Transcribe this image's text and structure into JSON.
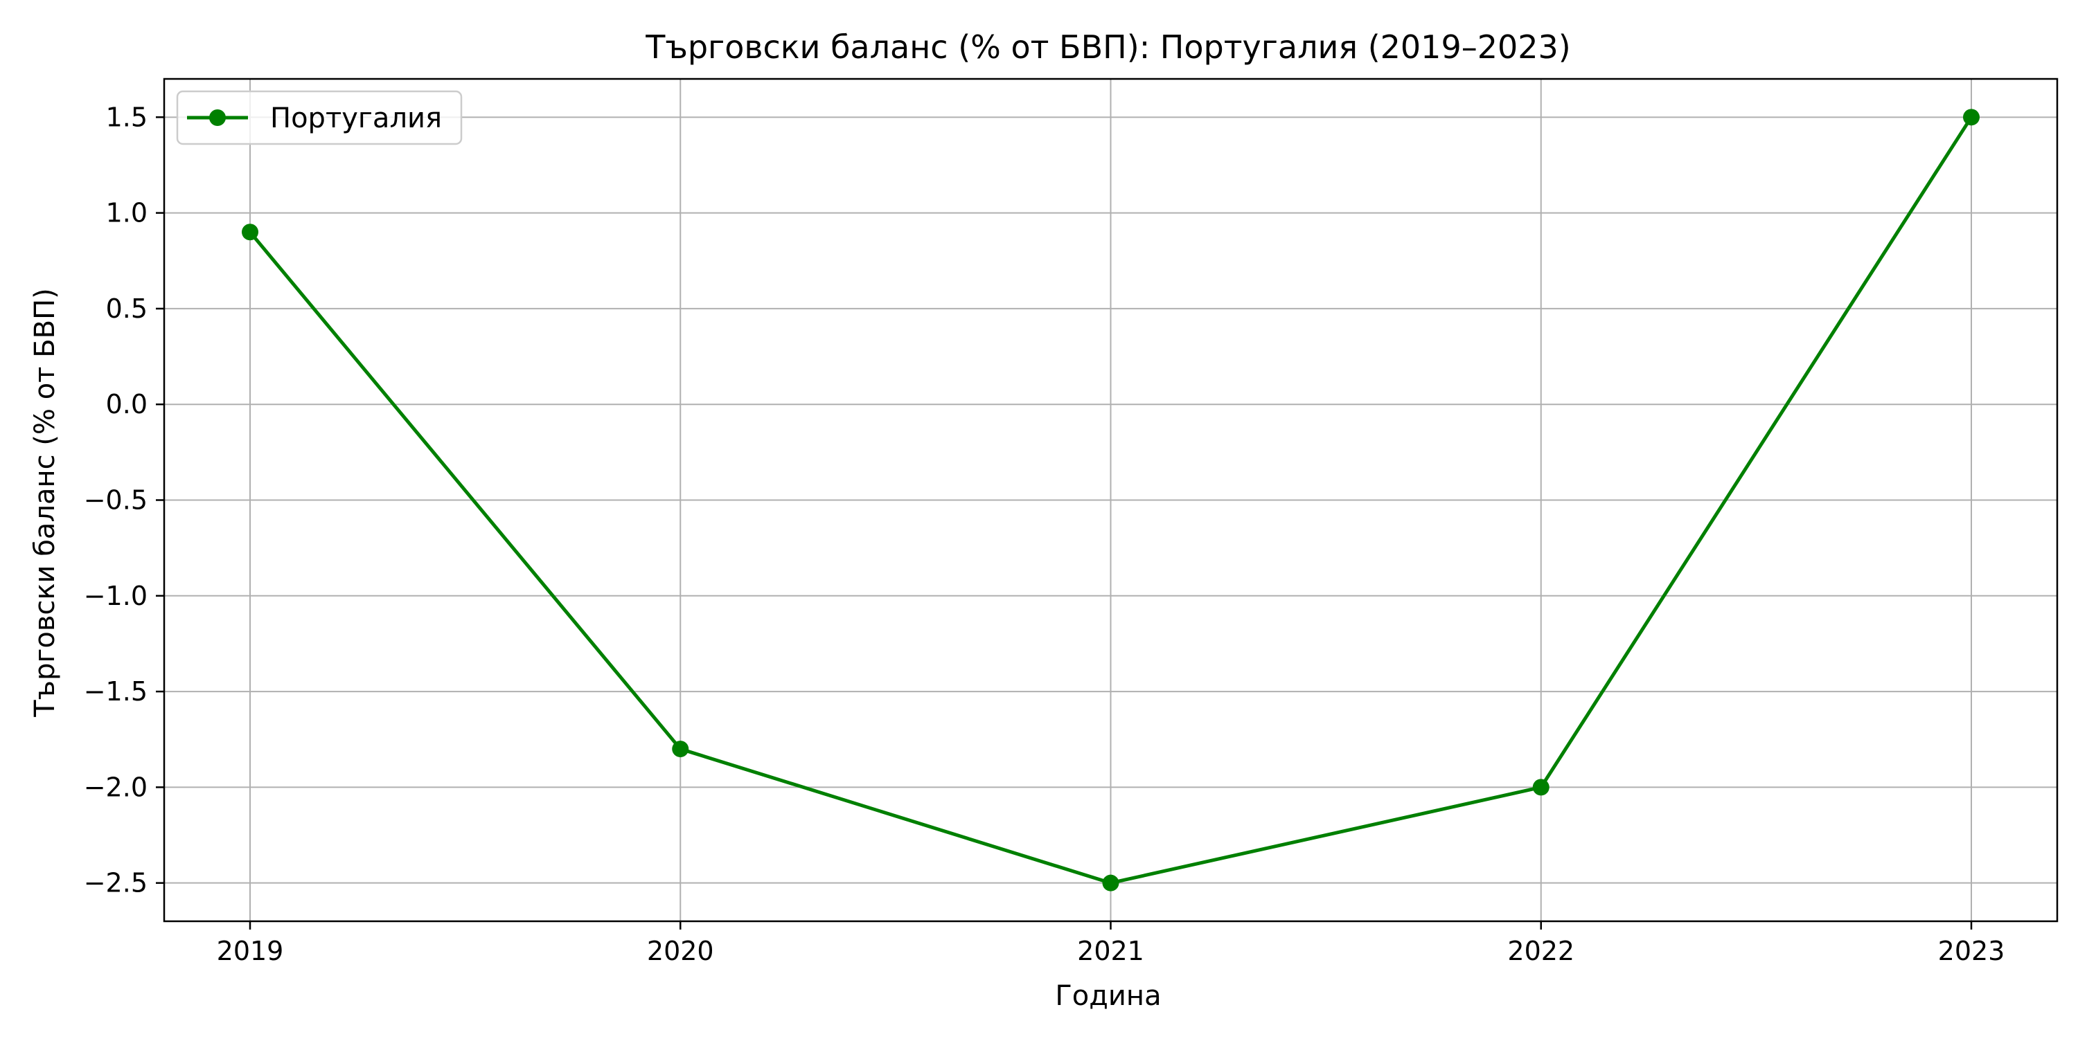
{
  "chart_data": {
    "type": "line",
    "title": "Търговски баланс (% от БВП): Португалия (2019–2023)",
    "xlabel": "Година",
    "ylabel": "Търговски баланс (% от БВП)",
    "x": [
      "2019",
      "2020",
      "2021",
      "2022",
      "2023"
    ],
    "series": [
      {
        "name": "Португалия",
        "values": [
          0.9,
          -1.8,
          -2.5,
          -2.0,
          1.5
        ],
        "color": "#008000",
        "marker": "circle"
      }
    ],
    "ylim": [
      -2.7,
      1.7
    ],
    "yticks": [
      1.5,
      1.0,
      0.5,
      0.0,
      -0.5,
      -1.0,
      -1.5,
      -2.0,
      -2.5
    ],
    "ytick_labels": [
      "1.5",
      "1.0",
      "0.5",
      "0.0",
      "−0.5",
      "−1.0",
      "−1.5",
      "−2.0",
      "−2.5"
    ],
    "grid": true,
    "legend_position": "top-left",
    "colors": {
      "grid": "#b0b0b0",
      "axes": "#000000",
      "background": "#ffffff"
    }
  }
}
